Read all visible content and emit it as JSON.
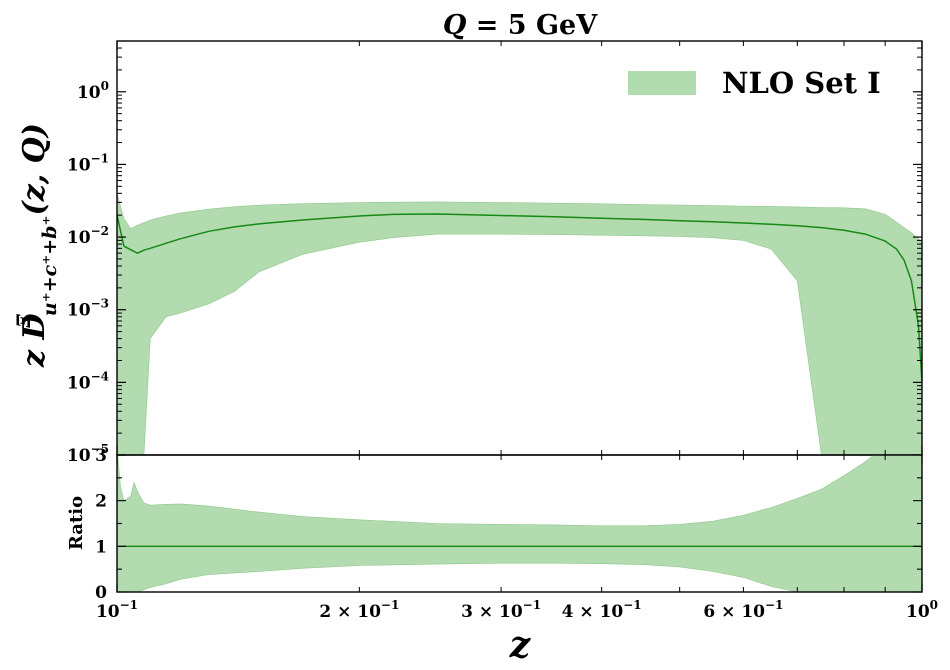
{
  "chart_data": {
    "type": "area",
    "title": "Q = 5 GeV",
    "xlabel": "z",
    "ylabel": "z D^Ξ_{u⁺+c⁺+b⁺}(z, Q)",
    "xscale": "log",
    "xlim": [
      0.1,
      1.0
    ],
    "legend": {
      "entries": [
        "NLO Set I"
      ],
      "placement": "top-right"
    },
    "colors": {
      "band": "#b3dbb0",
      "band_edge": "#8fc88a",
      "central": "#168a16"
    },
    "top_panel": {
      "yscale": "log",
      "ylim": [
        1e-05,
        5
      ],
      "y_ticks": [
        {
          "value": 1,
          "label": "10^0"
        },
        {
          "value": 0.1,
          "label": "10^-1"
        },
        {
          "value": 0.01,
          "label": "10^-2"
        },
        {
          "value": 0.001,
          "label": "10^-3"
        },
        {
          "value": 0.0001,
          "label": "10^-4"
        },
        {
          "value": 1e-05,
          "label": "10^-5"
        }
      ],
      "series": [
        {
          "name": "NLO Set I",
          "x": [
            0.1,
            0.102,
            0.104,
            0.106,
            0.108,
            0.11,
            0.115,
            0.12,
            0.13,
            0.14,
            0.15,
            0.17,
            0.2,
            0.22,
            0.25,
            0.3,
            0.35,
            0.4,
            0.45,
            0.5,
            0.55,
            0.6,
            0.65,
            0.7,
            0.75,
            0.8,
            0.85,
            0.9,
            0.93,
            0.95,
            0.97,
            0.99,
            1.0
          ],
          "central": [
            0.02,
            0.0075,
            0.0067,
            0.006,
            0.0066,
            0.007,
            0.0082,
            0.0095,
            0.012,
            0.0138,
            0.0152,
            0.0172,
            0.0195,
            0.0205,
            0.0208,
            0.0198,
            0.019,
            0.0182,
            0.0175,
            0.0168,
            0.0162,
            0.0156,
            0.015,
            0.0143,
            0.0135,
            0.0124,
            0.011,
            0.0088,
            0.0068,
            0.0048,
            0.0025,
            0.0006,
            0.0001
          ],
          "upper": [
            0.04,
            0.018,
            0.013,
            0.0145,
            0.0158,
            0.0172,
            0.0195,
            0.0215,
            0.0242,
            0.0262,
            0.0275,
            0.0288,
            0.0298,
            0.0302,
            0.0305,
            0.0299,
            0.0293,
            0.0287,
            0.0281,
            0.0276,
            0.0271,
            0.0266,
            0.0264,
            0.026,
            0.0255,
            0.0253,
            0.0245,
            0.0205,
            0.016,
            0.0135,
            0.0115,
            0.0095,
            0.008
          ],
          "lower": [
            1e-05,
            1e-05,
            1e-05,
            1e-05,
            1e-05,
            0.0004,
            0.0008,
            0.0009,
            0.0012,
            0.0018,
            0.0033,
            0.0058,
            0.0085,
            0.0098,
            0.011,
            0.011,
            0.0108,
            0.0106,
            0.0104,
            0.0102,
            0.0098,
            0.009,
            0.0068,
            0.0025,
            1e-05,
            1e-05,
            1e-05,
            1e-05,
            1e-05,
            1e-05,
            1e-05,
            1e-05,
            1e-05
          ]
        }
      ]
    },
    "ratio_panel": {
      "ylabel": "Ratio",
      "yscale": "linear",
      "ylim": [
        0,
        3
      ],
      "y_ticks": [
        0,
        1,
        2,
        3
      ],
      "series": [
        {
          "name": "NLO Set I",
          "x": [
            0.1,
            0.101,
            0.102,
            0.104,
            0.105,
            0.106,
            0.108,
            0.11,
            0.115,
            0.12,
            0.13,
            0.15,
            0.17,
            0.2,
            0.25,
            0.3,
            0.35,
            0.4,
            0.45,
            0.5,
            0.55,
            0.6,
            0.65,
            0.7,
            0.75,
            0.8,
            0.85,
            0.9,
            0.95,
            1.0
          ],
          "central": [
            1,
            1,
            1,
            1,
            1,
            1,
            1,
            1,
            1,
            1,
            1,
            1,
            1,
            1,
            1,
            1,
            1,
            1,
            1,
            1,
            1,
            1,
            1,
            1,
            1,
            1,
            1,
            1,
            1,
            1
          ],
          "upper": [
            3.2,
            2.3,
            2.0,
            2.1,
            2.4,
            2.2,
            1.95,
            1.9,
            1.92,
            1.93,
            1.88,
            1.75,
            1.65,
            1.58,
            1.5,
            1.48,
            1.47,
            1.45,
            1.45,
            1.48,
            1.55,
            1.68,
            1.85,
            2.05,
            2.25,
            2.55,
            2.85,
            3.2,
            3.5,
            3.8
          ],
          "lower": [
            0,
            0,
            0,
            0,
            0,
            0,
            0.05,
            0.1,
            0.18,
            0.28,
            0.38,
            0.45,
            0.52,
            0.58,
            0.61,
            0.63,
            0.63,
            0.62,
            0.6,
            0.55,
            0.45,
            0.32,
            0.12,
            0,
            0,
            0,
            0,
            0,
            0,
            0
          ]
        }
      ]
    },
    "x_ticks": [
      {
        "value": 0.1,
        "label": "10^-1"
      },
      {
        "value": 0.2,
        "label": "2 × 10^-1"
      },
      {
        "value": 0.3,
        "label": "3 × 10^-1"
      },
      {
        "value": 0.4,
        "label": "4 × 10^-1"
      },
      {
        "value": 0.6,
        "label": "6 × 10^-1"
      },
      {
        "value": 1.0,
        "label": "10^0"
      }
    ]
  }
}
